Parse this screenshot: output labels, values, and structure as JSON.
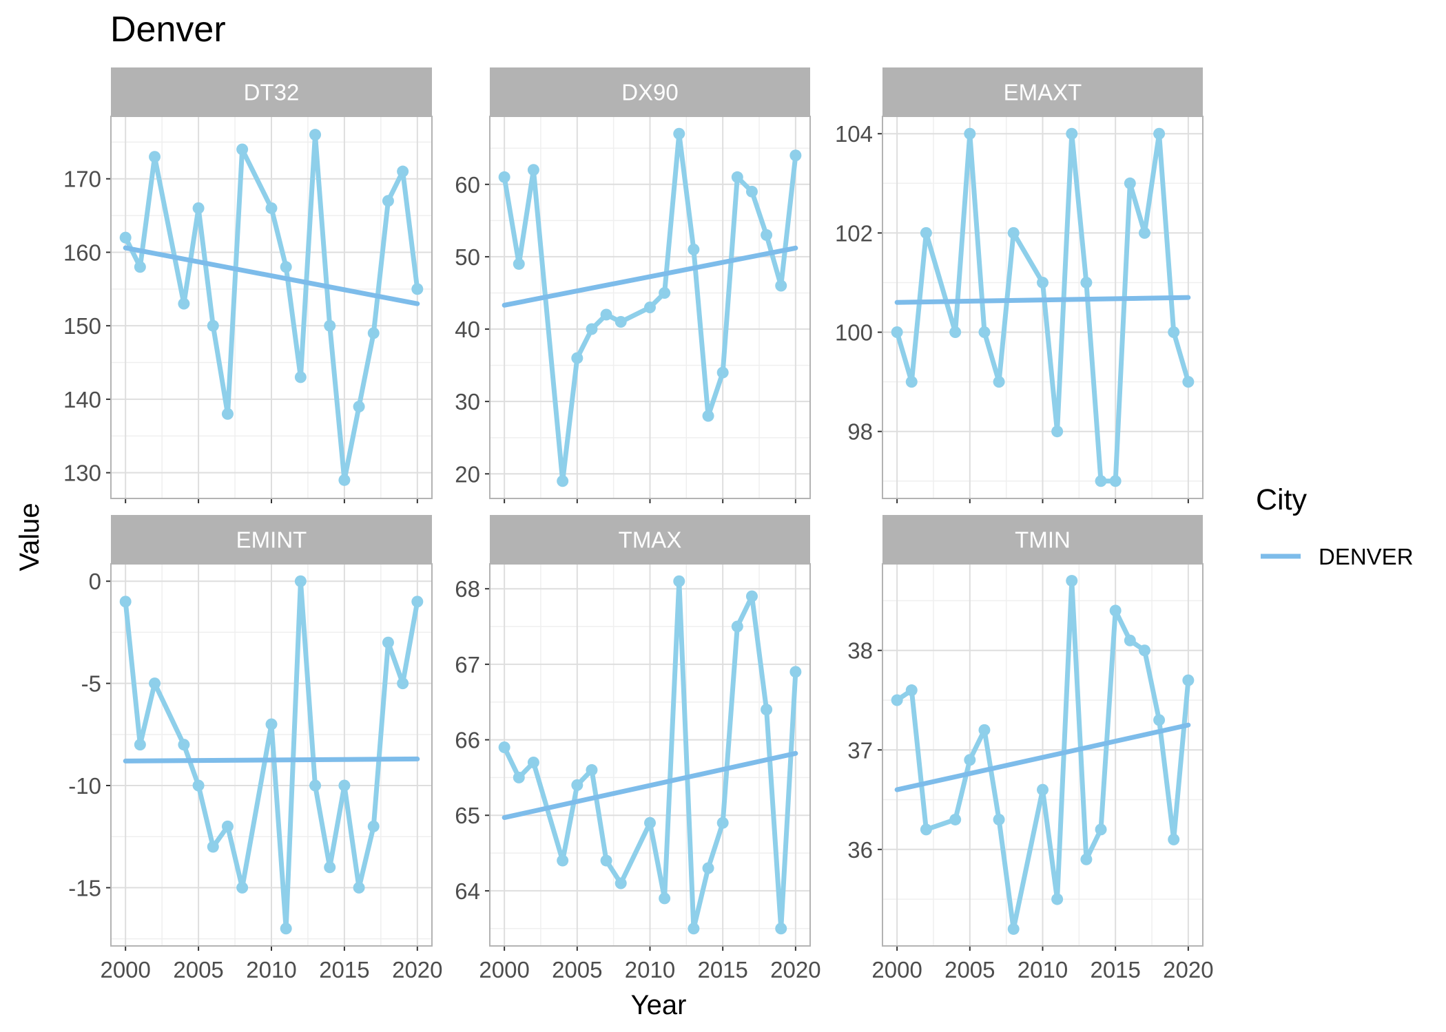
{
  "chart_data": {
    "type": "line",
    "title": "Denver",
    "xlabel": "Year",
    "ylabel": "Value",
    "legend": {
      "title": "City",
      "entries": [
        "DENVER"
      ],
      "placement": "right"
    },
    "colors": {
      "series": "#8ecfea",
      "trend": "#7dbcea",
      "strip": "#b3b3b3",
      "grid_major": "#dedede",
      "grid_minor": "#efefef",
      "border": "#b3b3b3"
    },
    "x": [
      2000,
      2001,
      2002,
      2004,
      2005,
      2006,
      2007,
      2008,
      2010,
      2011,
      2012,
      2013,
      2014,
      2015,
      2016,
      2017,
      2018,
      2019,
      2020
    ],
    "xlim": [
      1999,
      2021
    ],
    "xticks": [
      2000,
      2005,
      2010,
      2015,
      2020
    ],
    "grid": true,
    "panels": [
      {
        "name": "DT32",
        "ylim": [
          126.5,
          178.5
        ],
        "yticks": [
          130,
          140,
          150,
          160,
          170
        ],
        "ytick_labels": [
          "130",
          "140",
          "150",
          "160",
          "170"
        ],
        "values": [
          162,
          158,
          173,
          153,
          166,
          150,
          138,
          174,
          166,
          158,
          143,
          176,
          150,
          129,
          139,
          149,
          167,
          171,
          155
        ],
        "trend": [
          160.6,
          153.0
        ]
      },
      {
        "name": "DX90",
        "ylim": [
          16.6,
          69.4
        ],
        "yticks": [
          20,
          30,
          40,
          50,
          60
        ],
        "ytick_labels": [
          "20",
          "30",
          "40",
          "50",
          "60"
        ],
        "values": [
          61,
          49,
          62,
          19,
          36,
          40,
          42,
          41,
          43,
          45,
          67,
          51,
          28,
          34,
          61,
          59,
          53,
          46,
          64
        ],
        "trend": [
          43.3,
          51.2
        ]
      },
      {
        "name": "EMAXT",
        "ylim": [
          96.65,
          104.35
        ],
        "yticks": [
          98,
          100,
          102,
          104
        ],
        "ytick_labels": [
          "98",
          "100",
          "102",
          "104"
        ],
        "values": [
          100,
          99,
          102,
          100,
          104,
          100,
          99,
          102,
          101,
          98,
          104,
          101,
          97,
          97,
          103,
          102,
          104,
          100,
          99
        ],
        "trend": [
          100.6,
          100.7
        ]
      },
      {
        "name": "EMINT",
        "ylim": [
          -17.85,
          0.85
        ],
        "yticks": [
          -15,
          -10,
          -5,
          0
        ],
        "ytick_labels": [
          "-15",
          "-10",
          "-5",
          "0"
        ],
        "values": [
          -1,
          -8,
          -5,
          -8,
          -10,
          -13,
          -12,
          -15,
          -7,
          -17,
          0,
          -10,
          -14,
          -10,
          -15,
          -12,
          -3,
          -5,
          -1
        ],
        "trend": [
          -8.8,
          -8.7
        ]
      },
      {
        "name": "TMAX",
        "ylim": [
          63.27,
          68.33
        ],
        "yticks": [
          64,
          65,
          66,
          67,
          68
        ],
        "ytick_labels": [
          "64",
          "65",
          "66",
          "67",
          "68"
        ],
        "values": [
          65.9,
          65.5,
          65.7,
          64.4,
          65.4,
          65.6,
          64.4,
          64.1,
          64.9,
          63.9,
          68.1,
          63.5,
          64.3,
          64.9,
          67.5,
          67.9,
          66.4,
          63.5,
          66.9
        ],
        "trend": [
          64.97,
          65.82
        ]
      },
      {
        "name": "TMIN",
        "ylim": [
          35.03,
          38.87
        ],
        "yticks": [
          36,
          37,
          38
        ],
        "ytick_labels": [
          "36",
          "37",
          "38"
        ],
        "values": [
          37.5,
          37.6,
          36.2,
          36.3,
          36.9,
          37.2,
          36.3,
          35.2,
          36.6,
          35.5,
          38.7,
          35.9,
          36.2,
          38.4,
          38.1,
          38.0,
          37.3,
          36.1,
          37.7
        ],
        "trend": [
          36.6,
          37.25
        ]
      }
    ]
  }
}
